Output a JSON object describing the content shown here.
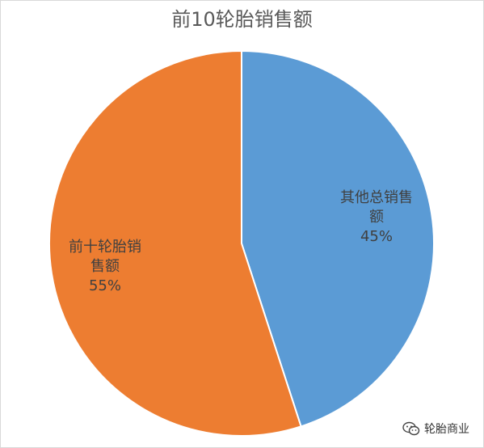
{
  "chart_data": {
    "type": "pie",
    "title": "前10轮胎销售额",
    "slices": [
      {
        "label": "其他总销售额",
        "label_lines": [
          "其他总销售",
          "额"
        ],
        "percent": "45%",
        "value": 45,
        "color": "#5b9bd5"
      },
      {
        "label": "前十轮胎销售额",
        "label_lines": [
          "前十轮胎销",
          "售额"
        ],
        "percent": "55%",
        "value": 55,
        "color": "#ed7d31"
      }
    ],
    "start_angle_deg": 0,
    "direction": "clockwise",
    "legend": "none"
  },
  "watermark": {
    "text": "轮胎商业",
    "icon": "wechat-icon"
  }
}
